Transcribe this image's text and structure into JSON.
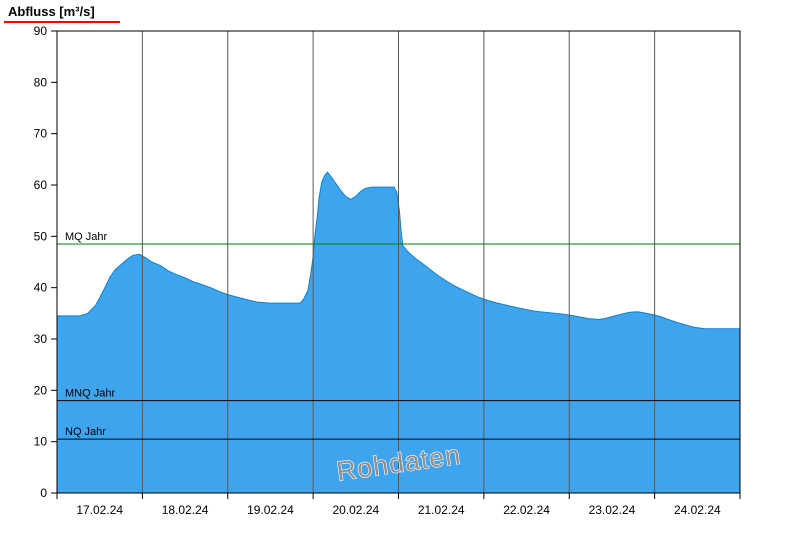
{
  "header": {
    "title": "Abfluss [m³/s]"
  },
  "watermark": "Rohdaten",
  "chart_data": {
    "type": "area",
    "title": "Abfluss [m³/s]",
    "ylabel": "Abfluss [m³/s]",
    "ylim": [
      0,
      90
    ],
    "ytick_step": 10,
    "x_day_span": 8,
    "x_tick_labels": [
      "17.02.24",
      "18.02.24",
      "19.02.24",
      "20.02.24",
      "21.02.24",
      "22.02.24",
      "23.02.24",
      "24.02.24"
    ],
    "grid": "vertical-day-lines",
    "legend_position": "none",
    "colors": {
      "fill": "#3FA4EE",
      "stroke": "#1280C8",
      "grid": "#595959",
      "axis": "#000000",
      "title_underline": "#FF0000"
    },
    "ref_lines": [
      {
        "label": "MQ Jahr",
        "value": 48.5,
        "color": "#007F0E"
      },
      {
        "label": "MNQ Jahr",
        "value": 18.0,
        "color": "#000000"
      },
      {
        "label": "NQ Jahr",
        "value": 10.5,
        "color": "#000000"
      }
    ],
    "series": [
      {
        "name": "Abfluss Rohdaten",
        "unit": "m³/s",
        "points": [
          [
            0.0,
            34.5
          ],
          [
            0.27,
            34.5
          ],
          [
            0.36,
            35.0
          ],
          [
            0.45,
            36.5
          ],
          [
            0.5,
            38.0
          ],
          [
            0.56,
            40.0
          ],
          [
            0.62,
            42.0
          ],
          [
            0.68,
            43.5
          ],
          [
            0.75,
            44.5
          ],
          [
            0.82,
            45.5
          ],
          [
            0.89,
            46.3
          ],
          [
            0.97,
            46.5
          ],
          [
            1.04,
            45.8
          ],
          [
            1.11,
            45.0
          ],
          [
            1.21,
            44.3
          ],
          [
            1.3,
            43.3
          ],
          [
            1.39,
            42.6
          ],
          [
            1.49,
            42.0
          ],
          [
            1.59,
            41.2
          ],
          [
            1.7,
            40.6
          ],
          [
            1.8,
            40.0
          ],
          [
            1.91,
            39.2
          ],
          [
            2.01,
            38.6
          ],
          [
            2.12,
            38.1
          ],
          [
            2.24,
            37.6
          ],
          [
            2.34,
            37.2
          ],
          [
            2.49,
            37.0
          ],
          [
            2.85,
            37.0
          ],
          [
            2.89,
            37.8
          ],
          [
            2.94,
            39.5
          ],
          [
            2.97,
            42.5
          ],
          [
            3.0,
            46.0
          ],
          [
            3.02,
            50.0
          ],
          [
            3.05,
            54.0
          ],
          [
            3.07,
            57.5
          ],
          [
            3.1,
            60.5
          ],
          [
            3.14,
            62.0
          ],
          [
            3.17,
            62.5
          ],
          [
            3.21,
            61.6
          ],
          [
            3.27,
            60.2
          ],
          [
            3.33,
            58.8
          ],
          [
            3.38,
            57.8
          ],
          [
            3.44,
            57.2
          ],
          [
            3.5,
            57.8
          ],
          [
            3.56,
            58.8
          ],
          [
            3.62,
            59.4
          ],
          [
            3.69,
            59.6
          ],
          [
            3.95,
            59.6
          ],
          [
            3.98,
            58.5
          ],
          [
            4.01,
            55.0
          ],
          [
            4.03,
            51.0
          ],
          [
            4.05,
            48.2
          ],
          [
            4.11,
            47.0
          ],
          [
            4.19,
            45.8
          ],
          [
            4.29,
            44.6
          ],
          [
            4.38,
            43.4
          ],
          [
            4.47,
            42.3
          ],
          [
            4.57,
            41.2
          ],
          [
            4.66,
            40.3
          ],
          [
            4.76,
            39.5
          ],
          [
            4.85,
            38.8
          ],
          [
            4.94,
            38.1
          ],
          [
            5.05,
            37.5
          ],
          [
            5.16,
            37.0
          ],
          [
            5.31,
            36.4
          ],
          [
            5.45,
            35.9
          ],
          [
            5.6,
            35.4
          ],
          [
            5.77,
            35.1
          ],
          [
            5.95,
            34.8
          ],
          [
            6.09,
            34.4
          ],
          [
            6.22,
            34.0
          ],
          [
            6.34,
            33.8
          ],
          [
            6.42,
            34.0
          ],
          [
            6.51,
            34.4
          ],
          [
            6.6,
            34.8
          ],
          [
            6.71,
            35.2
          ],
          [
            6.8,
            35.3
          ],
          [
            6.9,
            35.0
          ],
          [
            6.99,
            34.7
          ],
          [
            7.06,
            34.4
          ],
          [
            7.16,
            33.8
          ],
          [
            7.25,
            33.3
          ],
          [
            7.35,
            32.8
          ],
          [
            7.46,
            32.3
          ],
          [
            7.59,
            32.0
          ],
          [
            8.0,
            32.0
          ]
        ]
      }
    ]
  }
}
